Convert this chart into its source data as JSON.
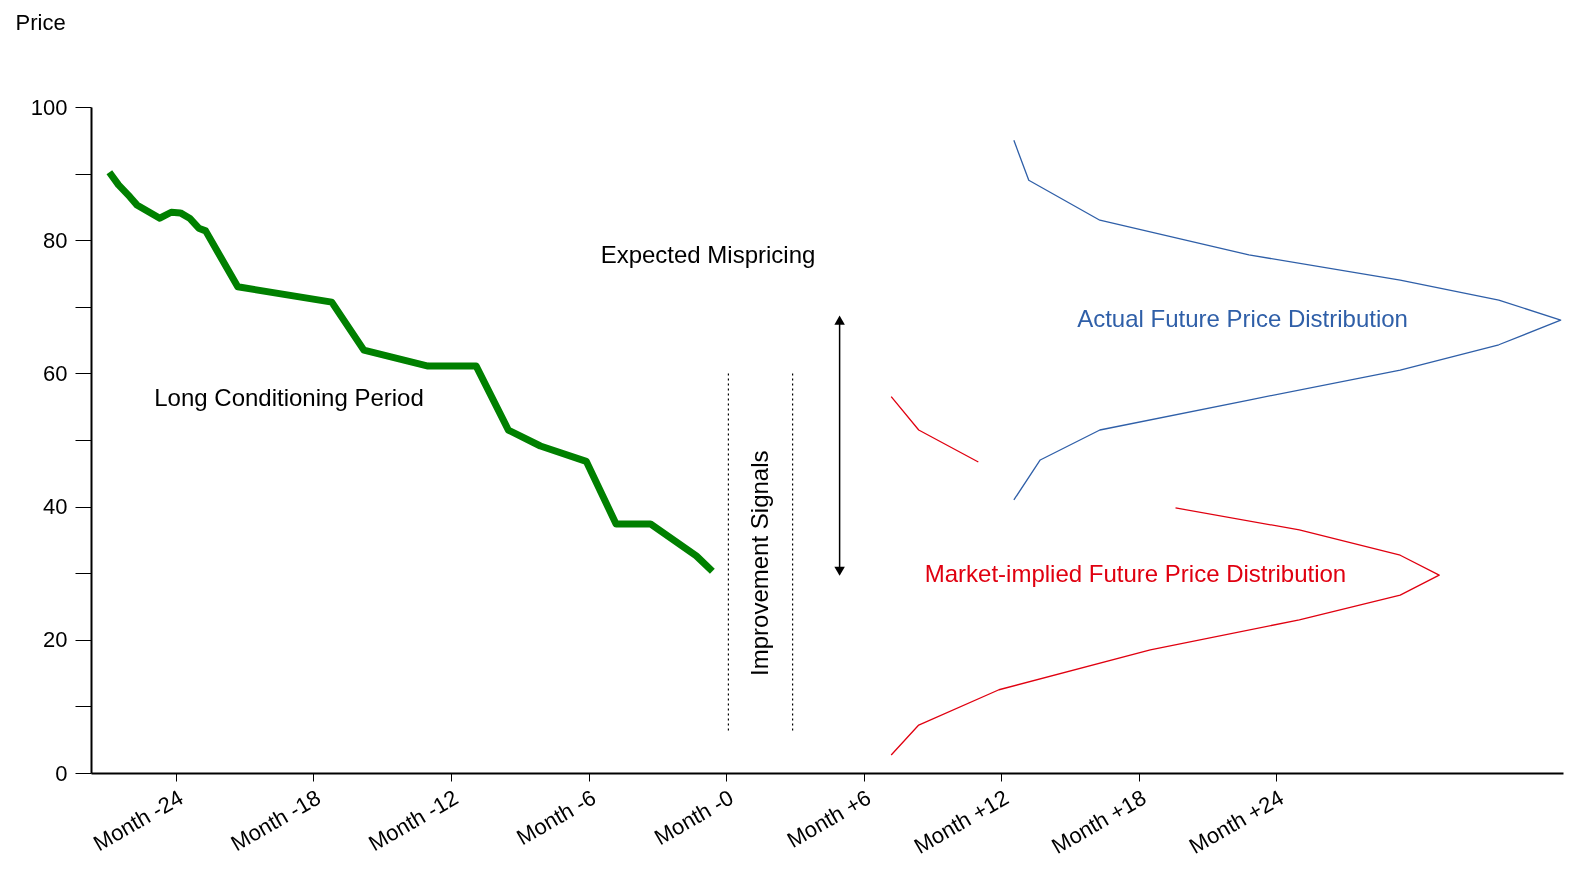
{
  "chart_data": {
    "type": "line",
    "ylabel": "Price",
    "xlim": [
      -27.7,
      36.5
    ],
    "ylim": [
      0,
      100
    ],
    "xticks": [
      {
        "value": -24,
        "label": "Month -24"
      },
      {
        "value": -18,
        "label": "Month -18"
      },
      {
        "value": -12,
        "label": "Month -12"
      },
      {
        "value": -6,
        "label": "Month -6"
      },
      {
        "value": 0,
        "label": "Month -0"
      },
      {
        "value": 6,
        "label": "Month +6"
      },
      {
        "value": 12,
        "label": "Month +12"
      },
      {
        "value": 18,
        "label": "Month +18"
      },
      {
        "value": 24,
        "label": "Month +24"
      }
    ],
    "yticks": [
      0,
      {
        "value": 10,
        "label": null
      },
      20,
      {
        "value": 30,
        "label": null
      },
      40,
      {
        "value": 50,
        "label": null
      },
      60,
      {
        "value": 70,
        "label": null
      },
      80,
      {
        "value": 90,
        "label": null
      },
      100
    ],
    "grid": false,
    "series": [
      {
        "color": "#008000",
        "x": [
          -26.9,
          -26.5,
          -26.0,
          -25.7,
          -24.7,
          -24.2,
          -23.8,
          -23.4,
          -23.0,
          -22.7,
          -21.3,
          -17.2,
          -15.8,
          -13.0,
          -10.9,
          -9.5,
          -8.1,
          -6.1,
          -4.8,
          -3.3,
          -1.3,
          -0.6
        ],
        "values": [
          90.2,
          88.3,
          86.5,
          85.3,
          83.3,
          84.2,
          84.1,
          83.3,
          81.8,
          81.4,
          73.0,
          70.7,
          63.5,
          61.1,
          61.1,
          51.5,
          49.1,
          46.8,
          37.4,
          37.4,
          32.6,
          30.3
        ]
      },
      {
        "name": "Actual Future Price Distribution",
        "color": "#2f5fa8",
        "x": [
          12.55,
          13.2,
          16.3,
          22.8,
          29.4,
          33.7,
          36.4,
          33.7,
          29.4,
          22.8,
          16.3,
          13.7,
          12.55
        ],
        "values": [
          95.0,
          89.0,
          83.0,
          77.8,
          74.0,
          71.0,
          68.0,
          64.3,
          60.5,
          56.0,
          51.5,
          47.0,
          41.0
        ]
      },
      {
        "name": "Market-implied Future Price Distribution",
        "color": "#e00010",
        "x": [
          7.2,
          8.4,
          11.0,
          null,
          19.6,
          25.0,
          29.4,
          31.1,
          29.4,
          25.0,
          18.5,
          11.9,
          8.4,
          7.2
        ],
        "values": [
          56.5,
          51.5,
          46.7,
          null,
          39.8,
          36.5,
          32.7,
          29.7,
          26.7,
          23.0,
          18.5,
          12.5,
          7.2,
          2.7
        ]
      },
      {
        "color": "#000000",
        "marker": "triangle",
        "x": [
          4.95,
          4.95
        ],
        "values": [
          30.3,
          68.0
        ]
      }
    ],
    "ref_lines": [
      {
        "axis": "x",
        "value": 0.1,
        "line_style": "dotted"
      },
      {
        "axis": "x",
        "value": 2.9,
        "label": "Improvement Signals",
        "line_style": "dotted"
      }
    ],
    "annotations": [
      "Long Conditioning Period",
      "Expected Mispricing"
    ]
  }
}
